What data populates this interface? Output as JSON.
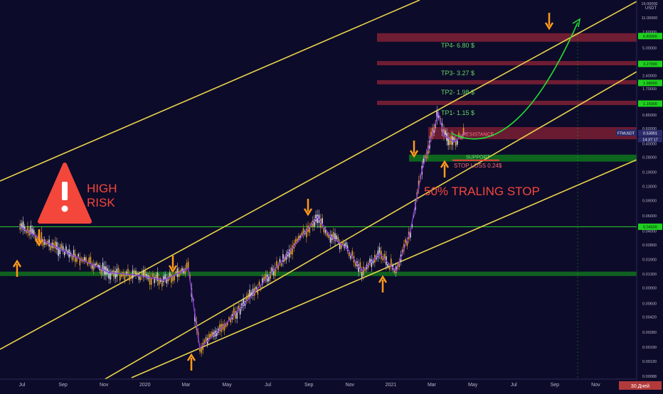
{
  "chart_data": {
    "type": "line",
    "symbol_label": "FTMUSDT",
    "currency_label": "USDT",
    "x_ticks": [
      "Jul",
      "Sep",
      "Nov",
      "2020",
      "Mar",
      "May",
      "Jul",
      "Sep",
      "Nov",
      "2021",
      "Mar",
      "May",
      "Jul",
      "Sep",
      "Nov"
    ],
    "y_ticks": [
      "16.00000",
      "11.00000",
      "7.60000",
      "5.00000",
      "3.30000",
      "2.40000",
      "1.70000",
      "1.20000",
      "0.85000",
      "0.60000",
      "0.40000",
      "0.28000",
      "0.19000",
      "0.13000",
      "0.09000",
      "0.06000",
      "0.04000",
      "0.02800",
      "0.01900",
      "0.01300",
      "0.00900",
      "0.00600",
      "0.00420",
      "0.00280",
      "0.00190",
      "0.00130",
      "0.00088"
    ],
    "series": [
      {
        "dates": [
          "2019-06-24",
          "2019-08-01",
          "2019-09-15",
          "2019-11-01",
          "2019-12-15",
          "2020-01-20",
          "2020-02-25",
          "2020-03-13",
          "2020-04-20",
          "2020-06-01",
          "2020-07-15",
          "2020-09-01",
          "2020-09-20",
          "2020-10-15",
          "2020-11-05",
          "2020-12-01",
          "2020-12-25",
          "2021-01-15",
          "2021-02-01",
          "2021-02-10",
          "2021-02-25",
          "2021-03-05",
          "2021-03-20",
          "2021-04-05"
        ],
        "values": [
          0.045,
          0.03,
          0.02,
          0.0135,
          0.0125,
          0.011,
          0.015,
          0.00185,
          0.0035,
          0.008,
          0.02,
          0.058,
          0.035,
          0.025,
          0.014,
          0.022,
          0.014,
          0.04,
          0.2,
          0.35,
          0.9,
          0.5,
          0.42,
          0.53
        ]
      }
    ],
    "price_tags": [
      {
        "value": "6.80000",
        "color": "#1fd11f"
      },
      {
        "value": "3.27000",
        "color": "#1fd11f"
      },
      {
        "value": "1.98000",
        "color": "#1fd11f"
      },
      {
        "value": "1.15000",
        "color": "#1fd11f"
      },
      {
        "value": "0.53001",
        "color": "#2a2a6a"
      },
      {
        "value": "0.04500",
        "color": "#1fd11f"
      }
    ],
    "last_price": {
      "symbol": "FTMUSDT",
      "value": "0.53001",
      "countdown": "14:37:17"
    },
    "zones": {
      "resistance": {
        "label": "RESISTANCE",
        "from": 0.45,
        "to": 0.62
      },
      "support": {
        "label": "SUPPORT",
        "from": 0.25,
        "to": 0.3
      },
      "support_bottom": {
        "from": 0.0123,
        "to": 0.0138
      }
    },
    "targets": [
      {
        "label": "TP4- 6.80 $",
        "value": 6.8
      },
      {
        "label": "TP3- 3.27 $",
        "value": 3.27
      },
      {
        "label": "TP2- 1.98 $",
        "value": 1.98
      },
      {
        "label": "TP1- 1.15 $",
        "value": 1.15
      }
    ],
    "stop_loss": {
      "label": "STOP LOSS 0.24$",
      "value": 0.24
    },
    "annotations": {
      "high_risk": [
        "HIGH",
        "RISK"
      ],
      "trailing_stop": "50% TRALING STOP"
    },
    "date_range_label": "30 Дней",
    "log_scale": true,
    "grid": false,
    "colors": {
      "background": "#0d0b2a",
      "channel": "#e9d44a",
      "zigzag": "#8a3ad8",
      "arrow": "#ff9a1a",
      "green_zone": "#0f6a1e",
      "red_zone": "#7a1f34",
      "target_text": "#5fd85f",
      "projection": "#22dd33",
      "warning": "#f4473c"
    }
  }
}
